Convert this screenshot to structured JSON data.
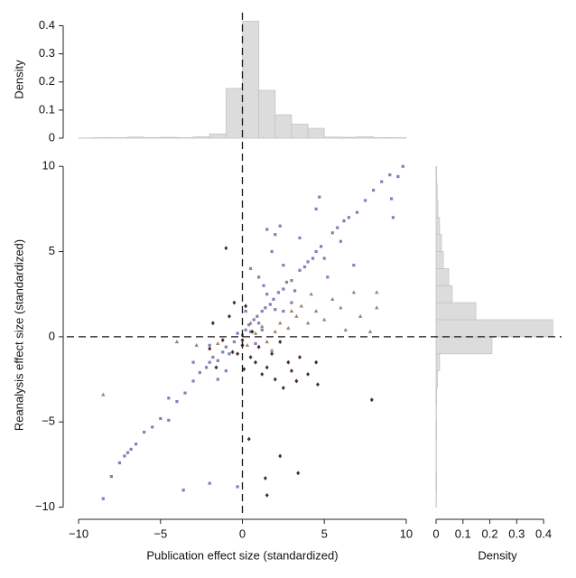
{
  "chart_data": [
    {
      "type": "scatter",
      "xlabel": "Publication effect size (standardized)",
      "ylabel": "Reanalysis effect size (standardized)",
      "xlim": [
        -10.5,
        10.5
      ],
      "ylim": [
        -10.5,
        10.7
      ],
      "xticks": [
        {
          "value": -10,
          "label": "−10"
        },
        {
          "value": -5,
          "label": "−5"
        },
        0,
        5,
        10
      ],
      "yticks": [
        {
          "value": -10,
          "label": "−10"
        },
        {
          "value": -5,
          "label": "−5"
        },
        0,
        5,
        10
      ],
      "reference_lines": {
        "x": 0,
        "y": 0
      },
      "series": [
        {
          "color": "#2b2b8c",
          "marker": "square",
          "x": [
            -8.5,
            -8,
            -7.5,
            -7.2,
            -7,
            -6.8,
            -6.5,
            -6,
            -5.5,
            -5,
            -4.5,
            -4.5,
            -4,
            -3.5,
            -3.6,
            -3,
            -2.6,
            -2.2,
            -2,
            -1.8,
            -1.5,
            -1.2,
            -1,
            -0.8,
            -0.5,
            -0.3,
            0,
            0.2,
            0.4,
            0.5,
            0.7,
            0.9,
            1,
            1.2,
            1.4,
            1.5,
            1.7,
            1.9,
            2,
            2.2,
            2.5,
            2.7,
            3,
            3.2,
            3.5,
            3.8,
            4,
            4.3,
            4.5,
            4.8,
            5,
            5.5,
            5.8,
            6,
            6.5,
            7,
            7.5,
            8,
            8.5,
            9,
            9.5,
            9.8,
            9.1,
            9.2,
            4.7,
            1.5,
            2,
            3.5,
            4.5,
            6.2,
            6.8,
            5.2,
            1,
            0.5,
            1.8,
            2.5,
            -3,
            -2,
            -0.3,
            -2,
            0.2,
            1.2,
            2.5,
            3,
            0.8,
            -1.5,
            -1,
            2.3,
            1.3
          ],
          "y": [
            -9.5,
            -8.2,
            -7.4,
            -7,
            -6.8,
            -6.6,
            -6.3,
            -5.6,
            -5.3,
            -4.8,
            -4.9,
            -3.6,
            -3.8,
            -3.3,
            -9,
            -2.6,
            -2.1,
            -1.8,
            -1.5,
            -1.2,
            -1.4,
            -0.9,
            -0.6,
            -1,
            -0.3,
            0.2,
            0.1,
            0.4,
            0.7,
            0.3,
            1,
            1.2,
            0.8,
            1.5,
            1.7,
            2.5,
            1.9,
            2.2,
            1.6,
            2.6,
            2.8,
            3.2,
            3.3,
            2.7,
            3.9,
            4.1,
            4.4,
            4.6,
            5,
            5.3,
            4.6,
            6.1,
            6.4,
            5.6,
            7,
            7.3,
            8,
            8.6,
            9.1,
            9.5,
            9.4,
            10,
            8.1,
            7,
            8.2,
            6.3,
            6,
            5.8,
            7.5,
            6.8,
            4.2,
            3.5,
            3.5,
            4,
            5,
            4.2,
            -1.5,
            -0.5,
            -8.8,
            -8.6,
            1.5,
            0.4,
            1.5,
            2,
            -0.4,
            -2.5,
            -2,
            6.5,
            3
          ]
        },
        {
          "color": "#8c6d4f",
          "marker": "triangle",
          "x": [
            -8.5,
            -4,
            -2.8,
            -1.5,
            0.3,
            0.8,
            1.2,
            1.5,
            2,
            2.3,
            2.8,
            3,
            3.3,
            3.6,
            4,
            4.5,
            5,
            5.5,
            6,
            6.3,
            7.2,
            8.2,
            8.2,
            6.8,
            7.8,
            4.2,
            1.8,
            0.5
          ],
          "y": [
            -3.4,
            -0.3,
            -0.5,
            -0.4,
            -0.5,
            0.2,
            0.6,
            -0.3,
            0.3,
            0.8,
            0.5,
            1.5,
            1.2,
            1.8,
            0.8,
            1.5,
            1,
            2.2,
            1.7,
            0.4,
            1.2,
            1.7,
            2.6,
            2.6,
            0.3,
            2.5,
            -0.8,
            0.8
          ]
        },
        {
          "color": "#2a0505",
          "marker": "diamond",
          "x": [
            -1,
            -1.8,
            -1.2,
            -0.8,
            -0.5,
            -0.3,
            0,
            0.2,
            0.5,
            0.8,
            1,
            1.2,
            1.5,
            1.8,
            2,
            2.3,
            2.5,
            2.8,
            3,
            3.3,
            3.5,
            4,
            4.5,
            2.3,
            0.4,
            1.4,
            1.5,
            3.4,
            7.9,
            4.6,
            -0.6,
            0.6,
            -1.6,
            -2,
            0,
            0.1
          ],
          "y": [
            5.2,
            0.8,
            -0.2,
            1.2,
            2,
            -1,
            -0.5,
            1.8,
            -1.2,
            -1.5,
            -0.6,
            -2.2,
            -1.8,
            -1,
            -2.5,
            -0.3,
            -3,
            -1.5,
            -2,
            -2.6,
            -1.2,
            -2.2,
            -1.5,
            -7,
            -6,
            -8.3,
            -9.3,
            -8,
            -3.7,
            -2.8,
            -0.9,
            0.3,
            -1.8,
            -0.7,
            -0.2,
            -1.9
          ]
        }
      ]
    },
    {
      "type": "histogram",
      "ylabel": "Density",
      "color": "#dcdcdc",
      "bins": [
        -10,
        -9,
        -8,
        -7,
        -6,
        -5,
        -4,
        -3,
        -2,
        -1,
        0,
        1,
        2,
        3,
        4,
        5,
        6,
        7,
        8,
        9,
        10
      ],
      "values": [
        0.001,
        0.002,
        0.002,
        0.004,
        0.002,
        0.003,
        0.002,
        0.005,
        0.015,
        0.177,
        0.416,
        0.17,
        0.083,
        0.05,
        0.035,
        0.004,
        0.003,
        0.005,
        0.002,
        0.002
      ],
      "ylim": [
        0,
        0.44
      ],
      "yticks": [
        0,
        0.1,
        0.2,
        0.3,
        0.4
      ]
    },
    {
      "type": "histogram",
      "orientation": "horizontal",
      "xlabel": "Density",
      "color": "#dcdcdc",
      "bins": [
        -10,
        -9,
        -8,
        -7,
        -6,
        -5,
        -4,
        -3,
        -2,
        -1,
        0,
        1,
        2,
        3,
        4,
        5,
        6,
        7,
        8,
        9,
        10
      ],
      "values": [
        0.001,
        0.002,
        0.001,
        0.001,
        0.002,
        0.001,
        0.002,
        0.005,
        0.013,
        0.208,
        0.434,
        0.148,
        0.06,
        0.047,
        0.027,
        0.02,
        0.013,
        0.007,
        0.004,
        0.002
      ],
      "xlim": [
        0,
        0.44
      ],
      "xticks": [
        0,
        0.1,
        0.2,
        0.3,
        0.4
      ]
    }
  ]
}
